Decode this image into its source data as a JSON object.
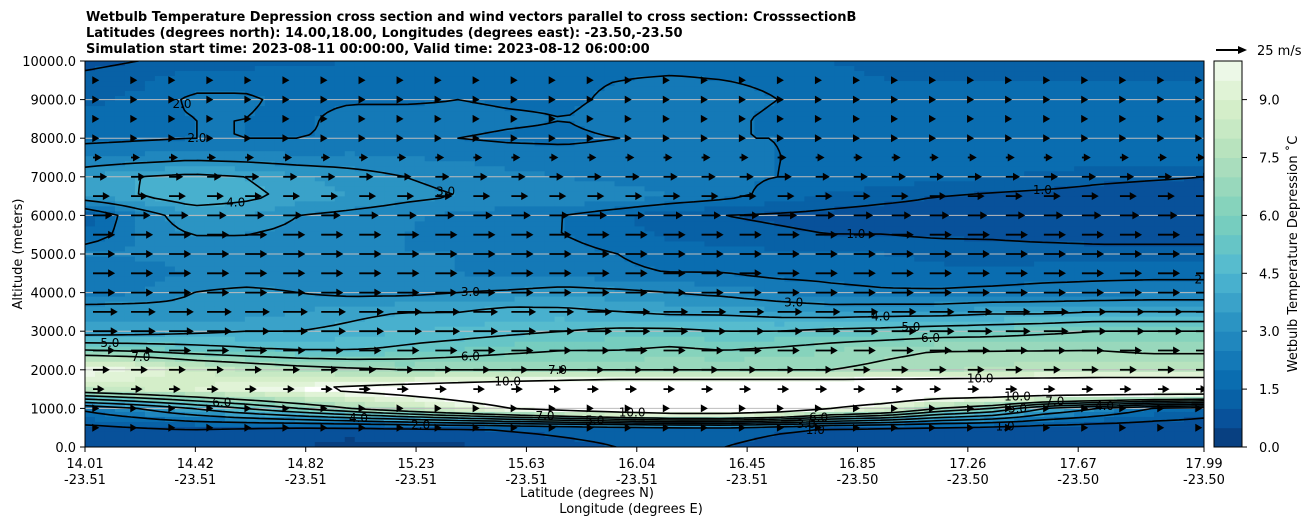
{
  "chart_data": {
    "type": "contourf",
    "title_lines": [
      "Wetbulb Temperature Depression cross section and wind vectors parallel to cross section: CrosssectionB",
      "Latitudes (degrees north): 14.00,18.00, Longitudes (degrees east): -23.50,-23.50",
      "Simulation start time: 2023-08-11 00:00:00, Valid time: 2023-08-12 06:00:00"
    ],
    "xlabel_1": "Latitude (degrees N)",
    "xlabel_2": "Longitude (degrees E)",
    "ylabel": "Altitude (meters)",
    "ylim": [
      0,
      10000
    ],
    "x_ticks": [
      {
        "lat": "14.01",
        "lon": "-23.51"
      },
      {
        "lat": "14.42",
        "lon": "-23.51"
      },
      {
        "lat": "14.82",
        "lon": "-23.51"
      },
      {
        "lat": "15.23",
        "lon": "-23.51"
      },
      {
        "lat": "15.63",
        "lon": "-23.51"
      },
      {
        "lat": "16.04",
        "lon": "-23.51"
      },
      {
        "lat": "16.45",
        "lon": "-23.51"
      },
      {
        "lat": "16.85",
        "lon": "-23.50"
      },
      {
        "lat": "17.26",
        "lon": "-23.50"
      },
      {
        "lat": "17.67",
        "lon": "-23.50"
      },
      {
        "lat": "17.99",
        "lon": "-23.50"
      }
    ],
    "y_ticks": [
      {
        "value": 0,
        "label": "0.0"
      },
      {
        "value": 1000,
        "label": "1000.0"
      },
      {
        "value": 2000,
        "label": "2000.0"
      },
      {
        "value": 3000,
        "label": "3000.0"
      },
      {
        "value": 4000,
        "label": "4000.0"
      },
      {
        "value": 5000,
        "label": "5000.0"
      },
      {
        "value": 6000,
        "label": "6000.0"
      },
      {
        "value": 7000,
        "label": "7000.0"
      },
      {
        "value": 8000,
        "label": "8000.0"
      },
      {
        "value": 9000,
        "label": "9000.0"
      },
      {
        "value": 10000,
        "label": "10000.0"
      }
    ],
    "colorbar": {
      "label": "Wetbulb Temperature Depression ˚C",
      "range": [
        0,
        10
      ],
      "ticks": [
        {
          "value": 0.0,
          "label": "0.0"
        },
        {
          "value": 1.5,
          "label": "1.5"
        },
        {
          "value": 3.0,
          "label": "3.0"
        },
        {
          "value": 4.5,
          "label": "4.5"
        },
        {
          "value": 6.0,
          "label": "6.0"
        },
        {
          "value": 7.5,
          "label": "7.5"
        },
        {
          "value": 9.0,
          "label": "9.0"
        }
      ],
      "levels": [
        0,
        0.5,
        1,
        1.5,
        2,
        2.5,
        3,
        3.5,
        4,
        4.5,
        5,
        5.5,
        6,
        6.5,
        7,
        7.5,
        8,
        8.5,
        9,
        9.5,
        10
      ],
      "colors": [
        "#084081",
        "#08519a",
        "#0861a6",
        "#0a6db0",
        "#1479b7",
        "#2087be",
        "#2b94c3",
        "#3aa2c9",
        "#48b0ce",
        "#57bcce",
        "#66c5c6",
        "#76cdbf",
        "#86d3bc",
        "#98d8bc",
        "#a9ddbd",
        "#b8e3be",
        "#c7e9c4",
        "#d4eec9",
        "#e0f3d6",
        "#ecf8e7",
        "#f7fcf0"
      ]
    },
    "vector_key": {
      "label": "25 m/s",
      "speed": 25
    },
    "contour_labels": [
      "1.0",
      "2.0",
      "3.0",
      "4.0",
      "5.0",
      "6.0",
      "7.0",
      "10.0"
    ],
    "field_rows": [
      {
        "z": 0,
        "v": [
          0.5,
          0.8,
          1.0,
          0.8,
          0.5,
          0.3,
          0.3,
          0.4,
          0.6,
          0.8,
          1.0,
          1.5,
          1.0,
          0.6,
          0.5,
          0.5,
          0.6,
          0.8,
          1.0,
          0.8,
          0.6,
          0.5
        ]
      },
      {
        "z": 500,
        "v": [
          0.8,
          0.9,
          1.0,
          0.9,
          0.8,
          0.8,
          0.9,
          1.0,
          1.1,
          1.2,
          1.3,
          1.4,
          1.5,
          1.2,
          1.0,
          0.8,
          0.7,
          0.6,
          0.6,
          0.5,
          0.5,
          0.5
        ]
      },
      {
        "z": 1000,
        "v": [
          2.2,
          3,
          4,
          5,
          6,
          7,
          8,
          9,
          10,
          11,
          12,
          13,
          13,
          12,
          10,
          9,
          7,
          6,
          4,
          3,
          2,
          1.5
        ]
      },
      {
        "z": 1500,
        "v": [
          8,
          8.5,
          9,
          9.5,
          10,
          10.5,
          11,
          11.5,
          12,
          12.5,
          13,
          13,
          13,
          13,
          13,
          13,
          13,
          13,
          13,
          13,
          13,
          13
        ]
      },
      {
        "z": 2000,
        "v": [
          10,
          9.5,
          8.5,
          8,
          7.5,
          7.2,
          7,
          7,
          7,
          7,
          7,
          7,
          7,
          7,
          7,
          7.2,
          7.4,
          7.6,
          7.8,
          8,
          8,
          8
        ]
      },
      {
        "z": 2500,
        "v": [
          6,
          5.8,
          5.5,
          5.2,
          5,
          5,
          5.2,
          5.5,
          5.8,
          6,
          6,
          6.2,
          6,
          6.2,
          6.5,
          6.8,
          7,
          7,
          7,
          7,
          6.8,
          6.8
        ]
      },
      {
        "z": 3000,
        "v": [
          3.5,
          3.6,
          3.8,
          4,
          4,
          4.2,
          4.5,
          4.6,
          4.8,
          5,
          5.2,
          5.2,
          5,
          5,
          5.2,
          5.3,
          5.5,
          5.6,
          5.8,
          6,
          6,
          6
        ]
      },
      {
        "z": 3500,
        "v": [
          3.5,
          3.4,
          3.2,
          3.2,
          3.5,
          3.8,
          4,
          4,
          4.3,
          4.2,
          4,
          3.8,
          3.8,
          3.6,
          3.5,
          3.6,
          3.6,
          3.8,
          3.8,
          4,
          4,
          4
        ]
      },
      {
        "z": 4000,
        "v": [
          2.2,
          2.5,
          3,
          3.2,
          3,
          2.8,
          2.8,
          3,
          3.1,
          3.3,
          3.2,
          3,
          2.8,
          2.5,
          2.2,
          2.1,
          2.1,
          2.2,
          2.3,
          2.3,
          2.4,
          2.4
        ]
      },
      {
        "z": 4500,
        "v": [
          2,
          2.2,
          2.5,
          2.5,
          2.6,
          2.5,
          2.6,
          2.5,
          2.4,
          2.3,
          2.1,
          2,
          2,
          1.8,
          1.8,
          1.7,
          1.6,
          1.6,
          1.7,
          1.8,
          1.8,
          1.8
        ]
      },
      {
        "z": 5000,
        "v": [
          2.5,
          2.6,
          2.8,
          2.8,
          2.5,
          2.6,
          2.5,
          2.5,
          2.4,
          2.2,
          2,
          1.8,
          1.7,
          1.6,
          1.5,
          1.5,
          1.4,
          1.3,
          1.3,
          1.2,
          1.2,
          1.2
        ]
      },
      {
        "z": 5500,
        "v": [
          1.5,
          2.5,
          3,
          3,
          2.8,
          2.6,
          2.5,
          2.3,
          2.1,
          2,
          1.7,
          1.4,
          1.2,
          1.1,
          1,
          1,
          0.9,
          0.9,
          0.8,
          0.8,
          0.8,
          0.8
        ]
      },
      {
        "z": 6000,
        "v": [
          1.2,
          2.5,
          3.5,
          3.5,
          3,
          2.8,
          2.6,
          2.4,
          2.2,
          2,
          1.6,
          1.2,
          1,
          0.9,
          0.8,
          0.7,
          0.7,
          0.6,
          0.6,
          0.5,
          0.5,
          0.5
        ]
      },
      {
        "z": 6500,
        "v": [
          3.5,
          4,
          4.5,
          4.2,
          3.8,
          3.5,
          3.2,
          3,
          3,
          3,
          2.8,
          2.5,
          2.2,
          1.8,
          1.4,
          1.2,
          1,
          0.9,
          0.8,
          0.7,
          0.6,
          0.6
        ]
      },
      {
        "z": 7000,
        "v": [
          3.5,
          4,
          4.2,
          4,
          3.6,
          3.3,
          3,
          2.8,
          2.6,
          2.5,
          2.3,
          2.2,
          2.1,
          2,
          1.9,
          1.8,
          1.7,
          1.5,
          1.4,
          1.2,
          1.1,
          1
        ]
      },
      {
        "z": 7500,
        "v": [
          2.5,
          2.6,
          2.8,
          2.7,
          2.6,
          2.6,
          2.5,
          2.4,
          2.3,
          2.2,
          2.2,
          2.1,
          2.1,
          2,
          2,
          1.9,
          1.9,
          1.9,
          1.8,
          1.8,
          1.8,
          1.8
        ]
      },
      {
        "z": 8000,
        "v": [
          1.8,
          1.9,
          2,
          2,
          2,
          2.1,
          2,
          2,
          1.9,
          1.9,
          2,
          2,
          2,
          2,
          1.9,
          1.8,
          1.8,
          1.8,
          1.8,
          1.8,
          1.8,
          1.8
        ]
      },
      {
        "z": 8500,
        "v": [
          1.6,
          1.8,
          2,
          2,
          1.8,
          2.3,
          2.3,
          2.2,
          2.1,
          2,
          2.2,
          2.3,
          2.2,
          1.8,
          1.5,
          1.6,
          1.7,
          1.8,
          1.8,
          1.8,
          1.8,
          1.8
        ]
      },
      {
        "z": 9000,
        "v": [
          1.4,
          1.6,
          2.1,
          2.1,
          1.8,
          1.9,
          1.9,
          2,
          1.9,
          1.9,
          2.1,
          2.4,
          2.4,
          2,
          1.6,
          1.5,
          1.6,
          1.7,
          1.7,
          1.7,
          1.7,
          1.7
        ]
      },
      {
        "z": 9500,
        "v": [
          1.2,
          1.4,
          1.8,
          1.8,
          1.7,
          1.8,
          1.8,
          1.9,
          1.9,
          1.9,
          2,
          2.1,
          2,
          1.8,
          1.6,
          1.5,
          1.5,
          1.5,
          1.5,
          1.5,
          1.5,
          1.5
        ]
      },
      {
        "z": 10000,
        "v": [
          0.8,
          1,
          1.2,
          1.3,
          1.4,
          1.5,
          1.5,
          1.6,
          1.6,
          1.7,
          1.7,
          1.7,
          1.7,
          1.6,
          1.5,
          1.4,
          1.3,
          1.3,
          1.3,
          1.3,
          1.3,
          1.3
        ]
      }
    ],
    "wind_rows": [
      {
        "z": 500,
        "u": 2
      },
      {
        "z": 1000,
        "u": 2
      },
      {
        "z": 1500,
        "u": 4
      },
      {
        "z": 2000,
        "u": 6
      },
      {
        "z": 2500,
        "u": 8
      },
      {
        "z": 3000,
        "u": 9
      },
      {
        "z": 3500,
        "u": 9
      },
      {
        "z": 4000,
        "u": 8
      },
      {
        "z": 4500,
        "u": 8
      },
      {
        "z": 5000,
        "u": 8
      },
      {
        "z": 5500,
        "u": 8
      },
      {
        "z": 6000,
        "u": 7
      },
      {
        "z": 6500,
        "u": 6
      },
      {
        "z": 7000,
        "u": 5
      },
      {
        "z": 7500,
        "u": 3
      },
      {
        "z": 8000,
        "u": 2
      },
      {
        "z": 8500,
        "u": 2
      },
      {
        "z": 9000,
        "u": 2
      },
      {
        "z": 9500,
        "u": 2
      }
    ]
  }
}
